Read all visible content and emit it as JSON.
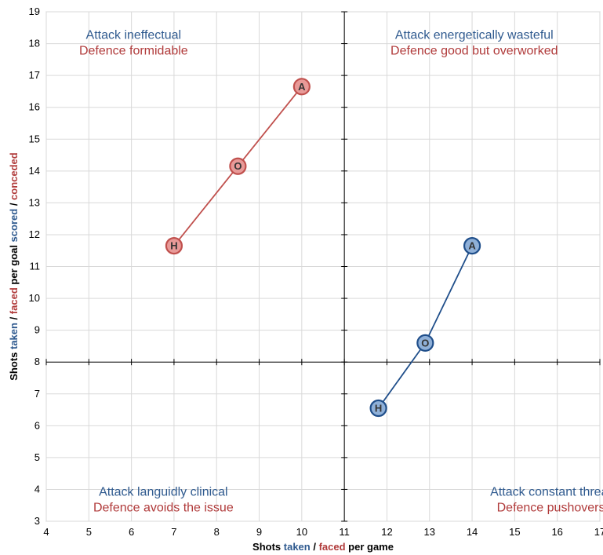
{
  "chart_data": {
    "type": "scatter",
    "xlabel_parts": [
      {
        "text": "Shots ",
        "color": "#000000"
      },
      {
        "text": "taken",
        "color": "#2f5a8f"
      },
      {
        "text": " / ",
        "color": "#000000"
      },
      {
        "text": "faced",
        "color": "#b03a3a"
      },
      {
        "text": " per game",
        "color": "#000000"
      }
    ],
    "ylabel_parts": [
      {
        "text": "Shots ",
        "color": "#000000"
      },
      {
        "text": "taken",
        "color": "#2f5a8f"
      },
      {
        "text": " / ",
        "color": "#000000"
      },
      {
        "text": "faced",
        "color": "#b03a3a"
      },
      {
        "text": " per goal ",
        "color": "#000000"
      },
      {
        "text": "scored",
        "color": "#2f5a8f"
      },
      {
        "text": " / ",
        "color": "#000000"
      },
      {
        "text": "conceded",
        "color": "#b03a3a"
      }
    ],
    "xlim": [
      4,
      17
    ],
    "ylim": [
      3,
      19
    ],
    "xticks": [
      "4",
      "5",
      "6",
      "7",
      "8",
      "9",
      "10",
      "11",
      "12",
      "13",
      "14",
      "15",
      "16",
      "17"
    ],
    "yticks": [
      "3",
      "4",
      "5",
      "6",
      "7",
      "8",
      "9",
      "10",
      "11",
      "12",
      "13",
      "14",
      "15",
      "16",
      "17",
      "18",
      "19"
    ],
    "grid": true,
    "quadrant_divider": {
      "x": 11,
      "y": 8
    },
    "series": [
      {
        "color": "#c0504d",
        "fill": "#e89a98",
        "points": [
          {
            "label": "H",
            "x": 7.0,
            "y": 11.65
          },
          {
            "label": "O",
            "x": 8.5,
            "y": 14.15
          },
          {
            "label": "A",
            "x": 10.0,
            "y": 16.65
          }
        ]
      },
      {
        "color": "#1f4e8a",
        "fill": "#8fb0d8",
        "points": [
          {
            "label": "H",
            "x": 11.8,
            "y": 6.55
          },
          {
            "label": "O",
            "x": 12.9,
            "y": 8.6
          },
          {
            "label": "A",
            "x": 14.0,
            "y": 11.65
          }
        ]
      }
    ],
    "annotations": [
      {
        "lines": [
          {
            "text": "Attack ineffectual",
            "color": "#2f5a8f"
          },
          {
            "text": "Defence formidable",
            "color": "#b03a3a"
          }
        ],
        "x": 6.05,
        "y": 18.15
      },
      {
        "lines": [
          {
            "text": "Attack energetically wasteful",
            "color": "#2f5a8f"
          },
          {
            "text": "Defence good but overworked",
            "color": "#b03a3a"
          }
        ],
        "x": 14.05,
        "y": 18.15
      },
      {
        "lines": [
          {
            "text": "Attack languidly clinical",
            "color": "#2f5a8f"
          },
          {
            "text": "Defence avoids the issue",
            "color": "#b03a3a"
          }
        ],
        "x": 6.75,
        "y": 3.8
      },
      {
        "lines": [
          {
            "text": "Attack constant threat",
            "color": "#2f5a8f"
          },
          {
            "text": "Defence pushovers",
            "color": "#b03a3a"
          }
        ],
        "x": 15.85,
        "y": 3.8
      }
    ]
  }
}
